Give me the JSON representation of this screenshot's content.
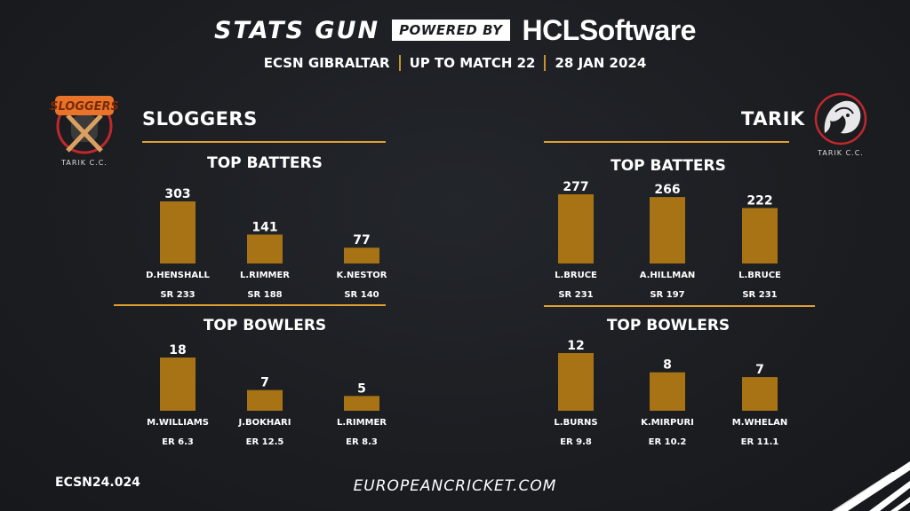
{
  "header": {
    "brand": "STATS GUN",
    "powered_by": "POWERED BY",
    "sponsor_hcl": "HCL",
    "sponsor_software": "Software",
    "competition": "ECSN GIBRALTAR",
    "scope": "UP TO MATCH 22",
    "date": "28 JAN 2024"
  },
  "left_team": {
    "name": "SLOGGERS",
    "logo_text": "SLOGGERS",
    "logo_caption": "TARIK C.C."
  },
  "right_team": {
    "name": "TARIK",
    "logo_caption": "TARIK C.C."
  },
  "sections": {
    "batters": "TOP BATTERS",
    "bowlers": "TOP BOWLERS"
  },
  "footer": {
    "code": "ECSN24.024",
    "site": "EUROPEANCRICKET.COM"
  },
  "colors": {
    "bar": "#a87314",
    "accent_line": "#e0a030",
    "background": "#1c1e22"
  },
  "chart_data": [
    {
      "type": "bar",
      "team": "SLOGGERS",
      "title": "TOP BATTERS",
      "metric": "runs",
      "categories": [
        "D.HENSHALL",
        "L.RIMMER",
        "K.NESTOR"
      ],
      "values": [
        303,
        141,
        77
      ],
      "rates": [
        "SR 233",
        "SR 188",
        "SR 140"
      ]
    },
    {
      "type": "bar",
      "team": "TARIK",
      "title": "TOP BATTERS",
      "metric": "runs",
      "categories": [
        "L.BRUCE",
        "A.HILLMAN",
        "L.BRUCE"
      ],
      "values": [
        277,
        266,
        222
      ],
      "rates": [
        "SR 231",
        "SR 197",
        "SR 231"
      ]
    },
    {
      "type": "bar",
      "team": "SLOGGERS",
      "title": "TOP BOWLERS",
      "metric": "wickets",
      "categories": [
        "M.WILLIAMS",
        "J.BOKHARI",
        "L.RIMMER"
      ],
      "values": [
        18,
        7,
        5
      ],
      "rates": [
        "ER 6.3",
        "ER 12.5",
        "ER 8.3"
      ]
    },
    {
      "type": "bar",
      "team": "TARIK",
      "title": "TOP BOWLERS",
      "metric": "wickets",
      "categories": [
        "L.BURNS",
        "K.MIRPURI",
        "M.WHELAN"
      ],
      "values": [
        12,
        8,
        7
      ],
      "rates": [
        "ER 9.8",
        "ER 10.2",
        "ER 11.1"
      ]
    }
  ]
}
